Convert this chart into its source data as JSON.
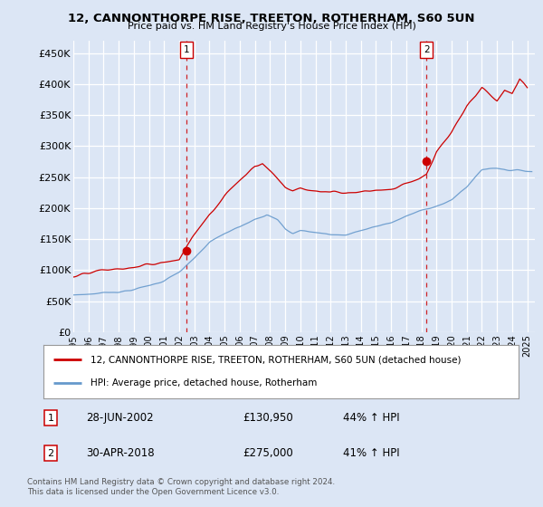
{
  "title": "12, CANNONTHORPE RISE, TREETON, ROTHERHAM, S60 5UN",
  "subtitle": "Price paid vs. HM Land Registry's House Price Index (HPI)",
  "ylabel_ticks": [
    "£0",
    "£50K",
    "£100K",
    "£150K",
    "£200K",
    "£250K",
    "£300K",
    "£350K",
    "£400K",
    "£450K"
  ],
  "ytick_values": [
    0,
    50000,
    100000,
    150000,
    200000,
    250000,
    300000,
    350000,
    400000,
    450000
  ],
  "ylim": [
    0,
    470000
  ],
  "xlim_start": 1995.0,
  "xlim_end": 2025.5,
  "background_color": "#dce6f5",
  "plot_bg_color": "#dce6f5",
  "grid_color": "#ffffff",
  "line1_color": "#cc0000",
  "line2_color": "#6699cc",
  "marker1_date": 2002.5,
  "marker1_value": 130950,
  "marker2_date": 2018.33,
  "marker2_value": 275000,
  "legend_line1": "12, CANNONTHORPE RISE, TREETON, ROTHERHAM, S60 5UN (detached house)",
  "legend_line2": "HPI: Average price, detached house, Rotherham",
  "table_row1": [
    "1",
    "28-JUN-2002",
    "£130,950",
    "44% ↑ HPI"
  ],
  "table_row2": [
    "2",
    "30-APR-2018",
    "£275,000",
    "41% ↑ HPI"
  ],
  "footer": "Contains HM Land Registry data © Crown copyright and database right 2024.\nThis data is licensed under the Open Government Licence v3.0.",
  "xticks": [
    1995,
    1996,
    1997,
    1998,
    1999,
    2000,
    2001,
    2002,
    2003,
    2004,
    2005,
    2006,
    2007,
    2008,
    2009,
    2010,
    2011,
    2012,
    2013,
    2014,
    2015,
    2016,
    2017,
    2018,
    2019,
    2020,
    2021,
    2022,
    2023,
    2024,
    2025
  ]
}
